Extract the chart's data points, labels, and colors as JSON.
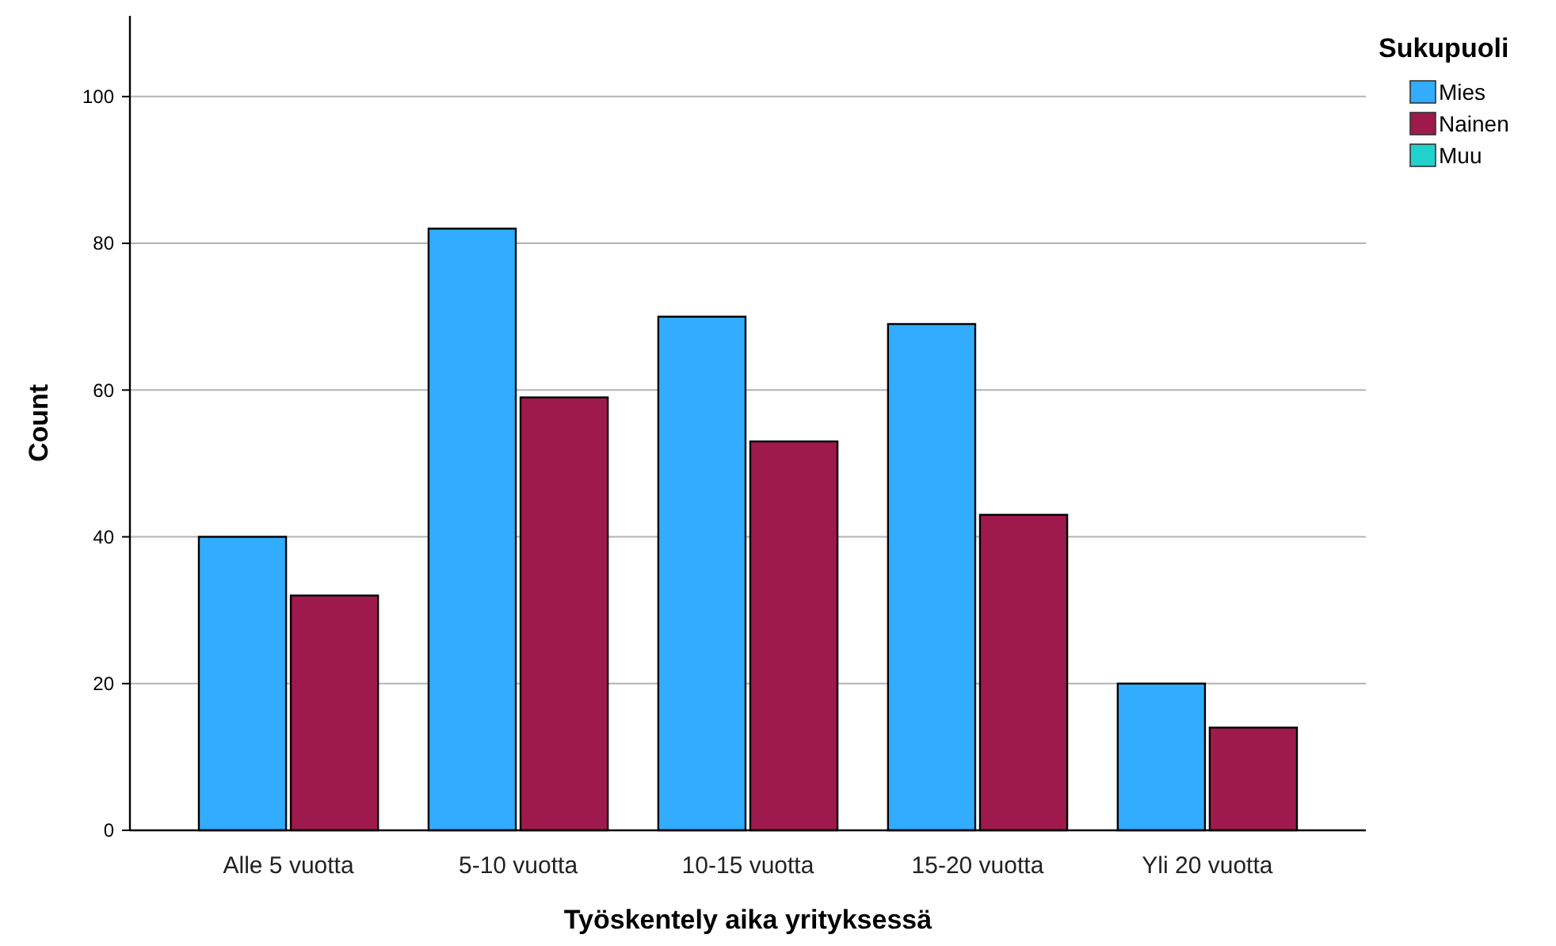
{
  "chart_data": {
    "type": "bar",
    "xlabel": "Työskentely aika yrityksessä",
    "ylabel": "Count",
    "legend_title": "Sukupuoli",
    "legend": "top right",
    "grid": "y",
    "categories": [
      "Alle 5 vuotta",
      "5-10 vuotta",
      "10-15 vuotta",
      "15-20 vuotta",
      "Yli 20 vuotta"
    ],
    "ylim": [
      0,
      111
    ],
    "yticks": [
      0,
      20,
      40,
      60,
      80,
      100
    ],
    "series": [
      {
        "name": "Mies",
        "color": "#31acfe",
        "values": [
          40,
          82,
          70,
          69,
          20
        ]
      },
      {
        "name": "Nainen",
        "color": "#9e1a4d",
        "values": [
          32,
          59,
          53,
          43,
          14
        ]
      },
      {
        "name": "Muu",
        "color": "#21d1cc",
        "values": [
          null,
          null,
          null,
          null,
          null
        ]
      }
    ]
  }
}
